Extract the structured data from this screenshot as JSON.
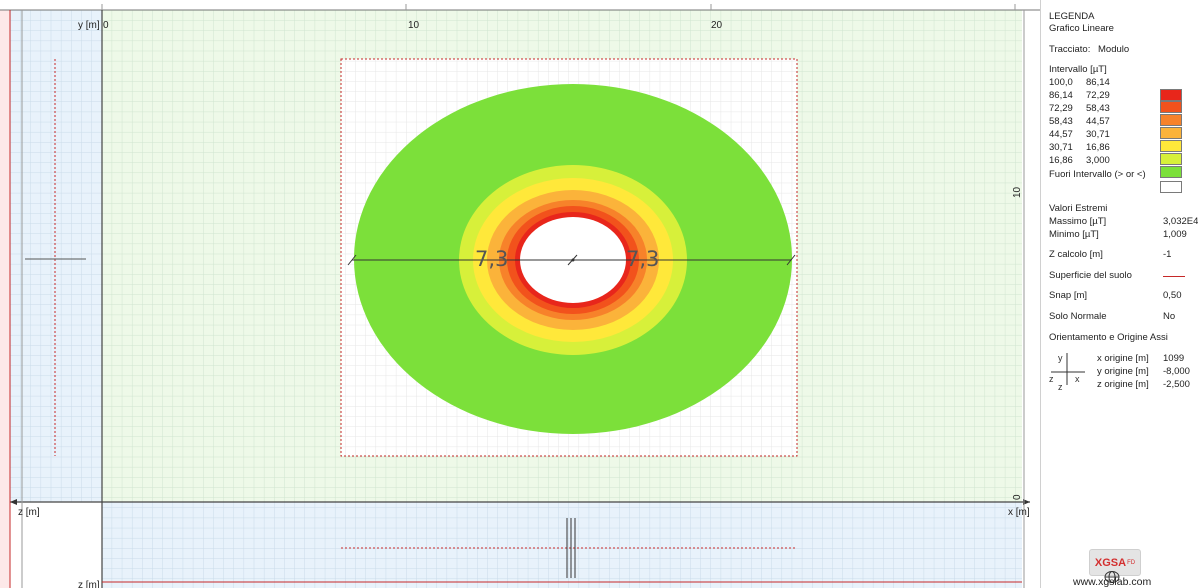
{
  "plot": {
    "y_axis_label": "y [m]",
    "x_axis_label": "x [m]",
    "z_axis_label": "z [m]",
    "z_axis_label_bottom": "z [m]",
    "tick_y0": "0",
    "tick_x10": "10",
    "tick_x20": "20",
    "tick_right_10": "10",
    "tick_right_0": "0",
    "dim_left": "7,3",
    "dim_right": "7,3"
  },
  "legend": {
    "title": "LEGENDA",
    "subtitle": "Grafico Lineare",
    "trace_label": "Tracciato:",
    "trace_value": "Modulo",
    "interval_label": "Intervallo [µT]",
    "intervals": [
      {
        "from": "100,0",
        "to": "86,14",
        "color": "#e8261b"
      },
      {
        "from": "86,14",
        "to": "72,29",
        "color": "#f2521c"
      },
      {
        "from": "72,29",
        "to": "58,43",
        "color": "#f7822a"
      },
      {
        "from": "58,43",
        "to": "44,57",
        "color": "#fbb33a"
      },
      {
        "from": "44,57",
        "to": "30,71",
        "color": "#ffe83a"
      },
      {
        "from": "30,71",
        "to": "16,86",
        "color": "#d7f03a"
      },
      {
        "from": "16,86",
        "to": "3,000",
        "color": "#7ce03a"
      }
    ],
    "out_of_range_label": "Fuori Intervallo (> or <)",
    "out_of_range_color": "#ffffff",
    "extremes_title": "Valori Estremi",
    "max_label": "Massimo [µT]",
    "max_value": "3,032E4",
    "min_label": "Minimo [µT]",
    "min_value": "1,009",
    "zcalc_label": "Z calcolo [m]",
    "zcalc_value": "-1",
    "ground_label": "Superficie del suolo",
    "ground_color": "#c62828",
    "snap_label": "Snap [m]",
    "snap_value": "0,50",
    "normal_label": "Solo Normale",
    "normal_value": "No",
    "orientation_title": "Orientamento e Origine Assi",
    "axes_glyph_y": "y",
    "axes_glyph_z": "z",
    "axes_glyph_x": "x",
    "axes_glyph_z2": "z",
    "x_origin_label": "x origine [m]",
    "x_origin_value": "1099",
    "y_origin_label": "y origine [m]",
    "y_origin_value": "-8,000",
    "z_origin_label": "z origine [m]",
    "z_origin_value": "-2,500",
    "logo_text": "XGSA",
    "logo_sub": "FD",
    "website": "www.xgslab.com"
  },
  "colors": {
    "grid_bg": "#eef9e8",
    "side_bg": "#e8f2fb",
    "white_area": "#ffffff",
    "outer_zone": "#7ce03a",
    "frame_red": "#c62828"
  }
}
